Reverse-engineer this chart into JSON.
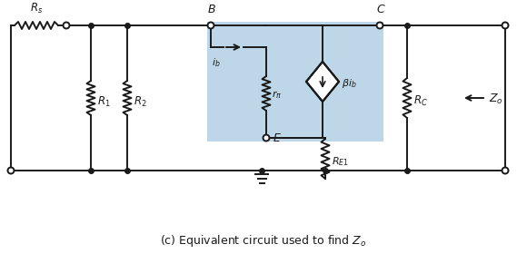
{
  "bg_color": "#ffffff",
  "highlight_color": "#bdd7e8",
  "line_color": "#1a1a1a",
  "title": "(c) Equivalent circuit used to find $Z_o$",
  "title_fontsize": 9,
  "fig_width": 5.8,
  "fig_height": 2.8,
  "dpi": 100
}
